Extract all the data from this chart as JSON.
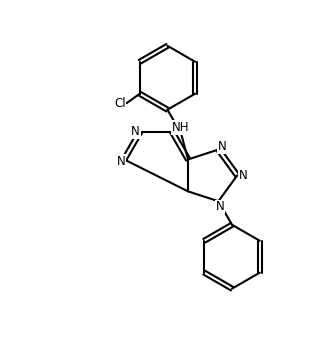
{
  "bg_color": "#ffffff",
  "line_color": "#000000",
  "line_width": 1.5,
  "font_size": 8.5,
  "figsize": [
    3.25,
    3.54
  ],
  "dpi": 100,
  "xlim": [
    0,
    10
  ],
  "ylim": [
    0,
    10.9
  ]
}
